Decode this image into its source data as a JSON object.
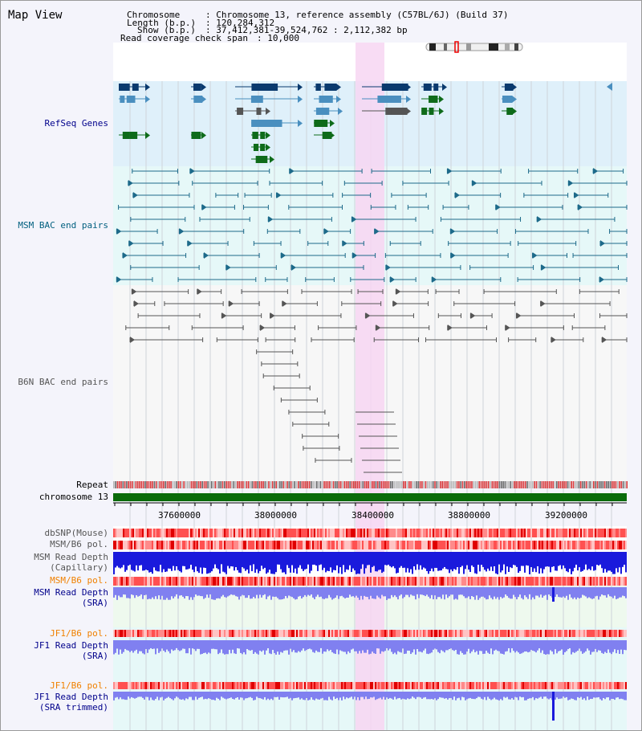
{
  "view_title": "Map View",
  "info": {
    "chromosome_label": "Chromosome",
    "chromosome_value": ": Chromosome 13, reference assembly (C57BL/6J) (Build 37)",
    "length_label": "Length (b.p.)",
    "length_value": ": 120,284,312",
    "show_label": "Show (b.p.)",
    "show_value": ": 37,412,381-39,524,762 : 2,112,382 bp",
    "coverage_label": "Read coverage check span",
    "coverage_value": ": 10,000"
  },
  "track_labels": {
    "refseq": "RefSeq Genes",
    "msm_bac": "MSM BAC end pairs",
    "b6n_bac": "B6N BAC end pairs",
    "repeat": "Repeat",
    "chromosome": "chromosome 13",
    "dbsnp": "dbSNP(Mouse)",
    "msm_b6_pol": "MSM/B6 pol.",
    "msm_read_depth_cap_1": "MSM Read Depth",
    "msm_read_depth_cap_2": "(Capillary)",
    "msm_b6_pol_2": "MSM/B6 pol.",
    "msm_read_depth_sra_1": "MSM Read Depth",
    "msm_read_depth_sra_2": "(SRA)",
    "jf1_b6_pol": "JF1/B6 pol.",
    "jf1_read_depth_1": "JF1 Read Depth",
    "jf1_read_depth_2": "(SRA)",
    "jf1_b6_pol_2": "JF1/B6 pol.",
    "jf1_trim_1": "JF1 Read Depth",
    "jf1_trim_2": "(SRA trimmed)"
  },
  "ruler_ticks": [
    "37600000",
    "38000000",
    "38400000",
    "38800000",
    "39200000"
  ],
  "colors": {
    "refseq_bg": "#dff0fa",
    "refseq_dark": "#0a3a6e",
    "refseq_mid": "#4a8fbf",
    "refseq_green": "#0e6b1a",
    "msm_line": "#1d6a8a",
    "b6n_line": "#555555",
    "highlight": "#f7d6f2",
    "chromosome_bar": "#0a6b0a",
    "depth_blue": "#1a1adc",
    "depth_light": "#8080f0",
    "pol_red": "#ff6f6f"
  }
}
